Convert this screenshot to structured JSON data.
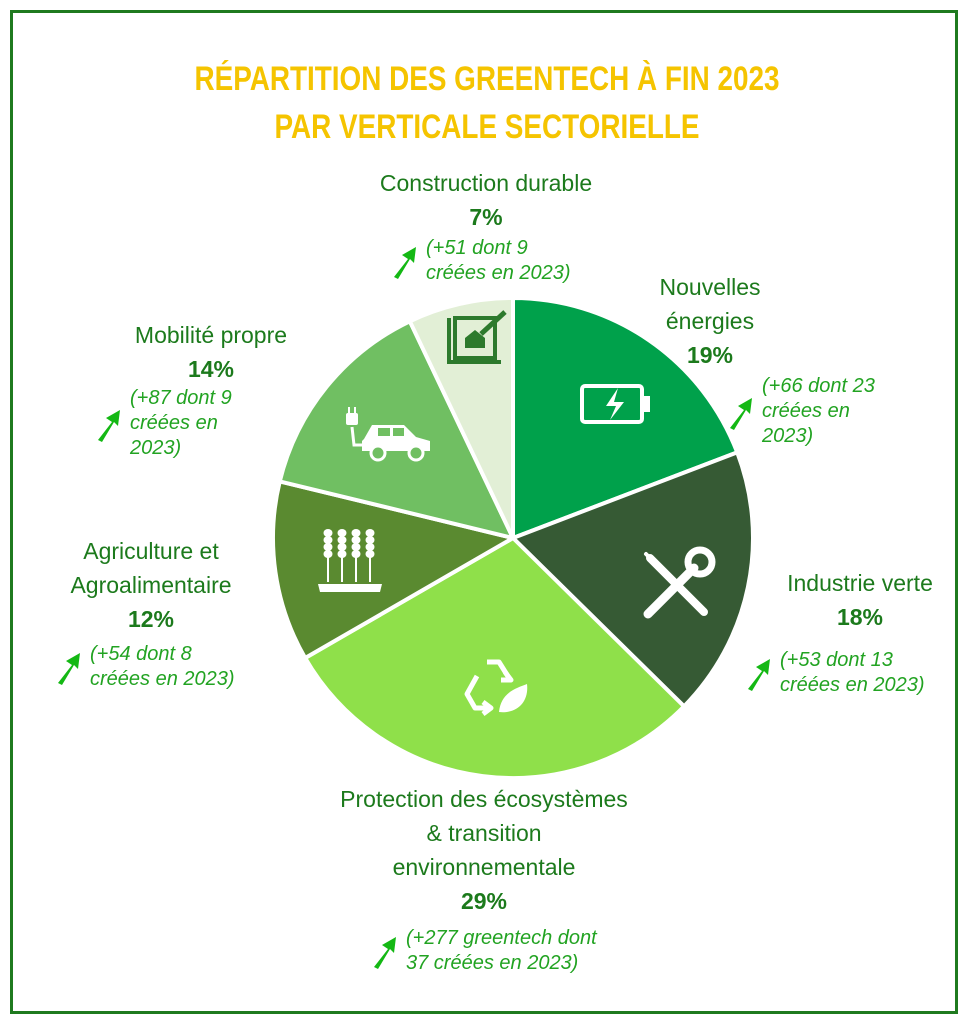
{
  "title": {
    "line1": "RÉPARTITION DES GREENTECH À FIN 2023",
    "line2": "PAR VERTICALE SECTORIELLE"
  },
  "colors": {
    "title": "#f5c400",
    "frame": "#1f7a1f",
    "label": "#1c7a1c",
    "note": "#22a322",
    "arrow": "#14b814"
  },
  "chart_data": {
    "type": "pie",
    "title": "RÉPARTITION DES GREENTECH À FIN 2023 PAR VERTICALE SECTORIELLE",
    "slices": [
      {
        "id": "nouvelles",
        "label": "Nouvelles énergies",
        "value": 19,
        "pct_label": "19%",
        "note": "(+66 dont 23 créées en 2023)",
        "color": "#00a14b",
        "icon": "battery-icon"
      },
      {
        "id": "industrie",
        "label": "Industrie verte",
        "value": 18,
        "pct_label": "18%",
        "note": "(+53 dont 13 créées en 2023)",
        "color": "#365a34",
        "icon": "tools-icon"
      },
      {
        "id": "protection",
        "label": "Protection des écosystèmes & transition environnementale",
        "value": 29,
        "pct_label": "29%",
        "note": "(+277 greentech dont 37 créées en 2023)",
        "color": "#8fe04a",
        "icon": "recycle-leaf-icon"
      },
      {
        "id": "agriculture",
        "label": "Agriculture et Agroalimentaire",
        "value": 12,
        "pct_label": "12%",
        "note": "(+54 dont 8 créées en 2023)",
        "color": "#5a8a30",
        "icon": "wheat-icon"
      },
      {
        "id": "mobilite",
        "label": "Mobilité propre",
        "value": 14,
        "pct_label": "14%",
        "note": "(+87 dont 9 créées en 2023)",
        "color": "#70bf62",
        "icon": "electric-car-icon"
      },
      {
        "id": "construction",
        "label": "Construction durable",
        "value": 7,
        "pct_label": "7%",
        "note": "(+51 dont 9 créées en 2023)",
        "color": "#e2efd6",
        "icon": "house-plan-icon"
      }
    ]
  },
  "labels": {
    "construction": {
      "lines": [
        "Construction durable"
      ],
      "pct": "7%",
      "note_lines": [
        "(+51 dont 9",
        "créées en 2023)"
      ]
    },
    "nouvelles": {
      "lines": [
        "Nouvelles",
        "énergies"
      ],
      "pct": "19%",
      "note_lines": [
        "(+66 dont 23",
        "créées en",
        "2023)"
      ]
    },
    "mobilite": {
      "lines": [
        "Mobilité propre"
      ],
      "pct": "14%",
      "note_lines": [
        "(+87 dont 9",
        "créées en",
        "2023)"
      ]
    },
    "agriculture": {
      "lines": [
        "Agriculture et",
        "Agroalimentaire"
      ],
      "pct": "12%",
      "note_lines": [
        "(+54 dont 8",
        "créées en 2023)"
      ]
    },
    "industrie": {
      "lines": [
        "Industrie verte"
      ],
      "pct": "18%",
      "note_lines": [
        "(+53 dont 13",
        "créées en 2023)"
      ]
    },
    "protection": {
      "lines": [
        "Protection des écosystèmes",
        "& transition",
        "environnementale"
      ],
      "pct": "29%",
      "note_lines": [
        "(+277 greentech dont",
        "37 créées en 2023)"
      ]
    }
  }
}
